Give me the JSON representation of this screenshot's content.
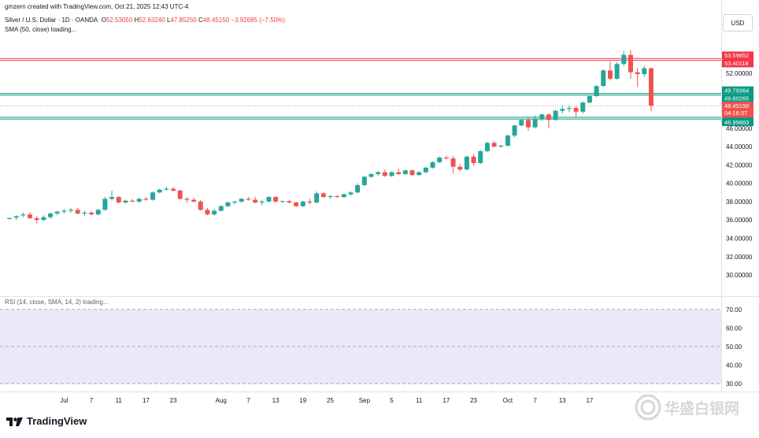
{
  "header": {
    "creator_line": "gmzern created with TradingView.com, Oct 21, 2025 12:43 UTC-4",
    "symbol": "Silver / U.S. Dollar · 1D · OANDA",
    "open_label": "O",
    "open": "52.53050",
    "high_label": "H",
    "high": "52.63240",
    "low_label": "L",
    "low": "47.85250",
    "close_label": "C",
    "close": "48.45150",
    "change": "−3.92685 (−7.50%)",
    "sma_label": "SMA (50, close) loading..."
  },
  "currency_button": "USD",
  "rsi_label": "RSI (14, close, SMA, 14, 2) loading...",
  "brand": "TradingView",
  "watermark": "华盛白银网",
  "colors": {
    "up": "#26a69a",
    "down": "#ef5350",
    "red_line": "#f23645",
    "green_line": "#089981",
    "rsi_bg": "#ede8f7"
  },
  "chart_data": {
    "type": "candlestick",
    "title": "Silver / U.S. Dollar · 1D · OANDA",
    "xlabel": "",
    "ylabel": "",
    "ylim": [
      28.2,
      56.2
    ],
    "y_ticks": [
      "30.00000",
      "32.00000",
      "34.00000",
      "36.00000",
      "38.00000",
      "40.00000",
      "42.00000",
      "44.00000",
      "46.00000",
      "48.00000",
      "50.00000",
      "52.00000"
    ],
    "x_ticks": [
      {
        "i": 8,
        "label": "Jul"
      },
      {
        "i": 12,
        "label": "7"
      },
      {
        "i": 16,
        "label": "11"
      },
      {
        "i": 20,
        "label": "17"
      },
      {
        "i": 24,
        "label": "23"
      },
      {
        "i": 31,
        "label": "Aug"
      },
      {
        "i": 35,
        "label": "7"
      },
      {
        "i": 39,
        "label": "13"
      },
      {
        "i": 43,
        "label": "19"
      },
      {
        "i": 47,
        "label": "25"
      },
      {
        "i": 52,
        "label": "Sep"
      },
      {
        "i": 56,
        "label": "5"
      },
      {
        "i": 60,
        "label": "11"
      },
      {
        "i": 64,
        "label": "17"
      },
      {
        "i": 68,
        "label": "23"
      },
      {
        "i": 73,
        "label": "Oct"
      },
      {
        "i": 77,
        "label": "7"
      },
      {
        "i": 81,
        "label": "13"
      },
      {
        "i": 85,
        "label": "17"
      }
    ],
    "candles": [
      [
        36.1,
        36.3,
        36.05,
        36.2
      ],
      [
        36.25,
        36.5,
        36.0,
        36.4
      ],
      [
        36.5,
        36.8,
        36.3,
        36.6
      ],
      [
        36.6,
        36.85,
        36.1,
        36.2
      ],
      [
        36.2,
        36.4,
        35.6,
        36.0
      ],
      [
        36.0,
        36.5,
        35.9,
        36.3
      ],
      [
        36.3,
        36.8,
        36.1,
        36.7
      ],
      [
        36.7,
        37.0,
        36.5,
        36.9
      ],
      [
        36.9,
        37.2,
        36.7,
        37.0
      ],
      [
        37.0,
        37.3,
        36.8,
        37.1
      ],
      [
        37.1,
        37.3,
        36.6,
        36.7
      ],
      [
        36.7,
        37.0,
        36.4,
        36.8
      ],
      [
        36.8,
        37.0,
        36.5,
        36.6
      ],
      [
        36.6,
        37.2,
        36.5,
        37.1
      ],
      [
        37.1,
        38.5,
        37.0,
        38.3
      ],
      [
        38.3,
        39.2,
        38.1,
        38.5
      ],
      [
        38.5,
        38.6,
        37.8,
        37.9
      ],
      [
        37.9,
        38.2,
        37.8,
        38.1
      ],
      [
        38.1,
        38.3,
        37.9,
        38.0
      ],
      [
        38.0,
        38.4,
        37.9,
        38.3
      ],
      [
        38.3,
        38.5,
        38.1,
        38.2
      ],
      [
        38.2,
        39.1,
        38.1,
        39.0
      ],
      [
        39.0,
        39.4,
        38.9,
        39.3
      ],
      [
        39.3,
        39.6,
        39.2,
        39.4
      ],
      [
        39.4,
        39.6,
        39.1,
        39.2
      ],
      [
        39.2,
        39.3,
        38.2,
        38.3
      ],
      [
        38.3,
        38.5,
        37.9,
        38.2
      ],
      [
        38.2,
        38.4,
        37.9,
        38.0
      ],
      [
        38.0,
        38.2,
        37.0,
        37.1
      ],
      [
        37.1,
        37.3,
        36.5,
        36.6
      ],
      [
        36.6,
        37.2,
        36.5,
        37.0
      ],
      [
        37.0,
        37.6,
        36.9,
        37.5
      ],
      [
        37.5,
        38.0,
        37.4,
        37.9
      ],
      [
        37.9,
        38.1,
        37.7,
        38.0
      ],
      [
        38.0,
        38.4,
        37.9,
        38.3
      ],
      [
        38.3,
        38.5,
        38.1,
        38.2
      ],
      [
        38.2,
        38.5,
        37.8,
        37.9
      ],
      [
        37.9,
        38.2,
        37.6,
        38.0
      ],
      [
        38.0,
        38.6,
        37.9,
        38.5
      ],
      [
        38.5,
        38.6,
        37.9,
        38.0
      ],
      [
        38.0,
        38.1,
        37.9,
        38.05
      ],
      [
        38.05,
        38.2,
        37.8,
        37.9
      ],
      [
        37.9,
        38.0,
        37.4,
        37.5
      ],
      [
        37.5,
        38.1,
        37.4,
        38.0
      ],
      [
        38.0,
        38.3,
        37.7,
        37.9
      ],
      [
        37.9,
        39.1,
        37.8,
        38.9
      ],
      [
        38.9,
        39.0,
        38.4,
        38.5
      ],
      [
        38.5,
        38.7,
        38.3,
        38.6
      ],
      [
        38.6,
        38.7,
        38.4,
        38.5
      ],
      [
        38.5,
        38.9,
        38.4,
        38.8
      ],
      [
        38.8,
        39.1,
        38.6,
        39.0
      ],
      [
        39.0,
        40.0,
        38.9,
        39.8
      ],
      [
        39.8,
        40.8,
        39.7,
        40.7
      ],
      [
        40.7,
        41.1,
        40.6,
        41.0
      ],
      [
        41.0,
        41.3,
        40.8,
        41.2
      ],
      [
        41.2,
        41.5,
        40.7,
        40.8
      ],
      [
        40.8,
        41.3,
        40.7,
        41.2
      ],
      [
        41.2,
        41.6,
        40.9,
        41.0
      ],
      [
        41.0,
        41.5,
        40.9,
        41.4
      ],
      [
        41.4,
        41.5,
        40.8,
        40.9
      ],
      [
        40.9,
        41.3,
        40.8,
        41.2
      ],
      [
        41.2,
        41.8,
        41.1,
        41.7
      ],
      [
        41.7,
        42.4,
        41.6,
        42.3
      ],
      [
        42.3,
        42.9,
        42.2,
        42.8
      ],
      [
        42.8,
        43.0,
        42.6,
        42.7
      ],
      [
        42.7,
        43.0,
        41.1,
        41.8
      ],
      [
        41.8,
        42.1,
        41.3,
        41.5
      ],
      [
        41.5,
        43.0,
        41.4,
        42.9
      ],
      [
        42.9,
        43.2,
        41.9,
        42.2
      ],
      [
        42.2,
        43.6,
        42.1,
        43.5
      ],
      [
        43.5,
        44.5,
        43.4,
        44.4
      ],
      [
        44.4,
        44.6,
        43.9,
        44.0
      ],
      [
        44.0,
        44.2,
        43.9,
        44.1
      ],
      [
        44.1,
        45.3,
        44.0,
        45.2
      ],
      [
        45.2,
        46.4,
        45.0,
        46.3
      ],
      [
        46.3,
        47.0,
        46.2,
        46.9
      ],
      [
        46.9,
        47.2,
        45.7,
        46.1
      ],
      [
        46.1,
        47.4,
        46.0,
        47.0
      ],
      [
        47.0,
        47.6,
        46.8,
        47.5
      ],
      [
        47.5,
        47.6,
        46.0,
        46.9
      ],
      [
        46.9,
        48.0,
        46.8,
        47.9
      ],
      [
        47.9,
        48.5,
        47.6,
        48.1
      ],
      [
        48.1,
        48.5,
        47.8,
        48.2
      ],
      [
        48.2,
        48.4,
        47.2,
        47.8
      ],
      [
        47.8,
        48.9,
        47.6,
        48.8
      ],
      [
        48.8,
        49.6,
        48.7,
        49.5
      ],
      [
        49.5,
        50.7,
        49.4,
        50.6
      ],
      [
        50.6,
        52.4,
        50.5,
        52.3
      ],
      [
        52.3,
        53.3,
        51.2,
        51.4
      ],
      [
        51.4,
        53.2,
        51.3,
        53.0
      ],
      [
        53.0,
        54.4,
        52.8,
        54.0
      ],
      [
        54.0,
        54.5,
        51.4,
        52.1
      ],
      [
        52.1,
        52.6,
        50.5,
        51.9
      ],
      [
        51.9,
        52.8,
        51.6,
        52.53
      ],
      [
        52.53,
        52.63,
        47.85,
        48.45
      ]
    ],
    "horizontal_lines": [
      {
        "value": 53.59852,
        "label": "53.59852",
        "color": "#f23645"
      },
      {
        "value": 53.40118,
        "label": "53.40118",
        "color": "#f23645"
      },
      {
        "value": 49.79364,
        "label": "49.79364",
        "color": "#089981"
      },
      {
        "value": 49.60265,
        "label": "49.60265",
        "color": "#089981"
      },
      {
        "value": 47.19455,
        "label": "47.19455",
        "color": "#089981"
      },
      {
        "value": 46.99883,
        "label": "46.99883",
        "color": "#089981"
      }
    ],
    "last_price": {
      "value": 48.4515,
      "label": "48.45150",
      "countdown": "04:16:37"
    },
    "rsi_panel": {
      "ylim": [
        27,
        75
      ],
      "y_ticks": [
        "30.00",
        "40.00",
        "50.00",
        "60.00",
        "70.00"
      ],
      "band": [
        30,
        70
      ],
      "dashed_levels": [
        70,
        50,
        30
      ]
    }
  }
}
